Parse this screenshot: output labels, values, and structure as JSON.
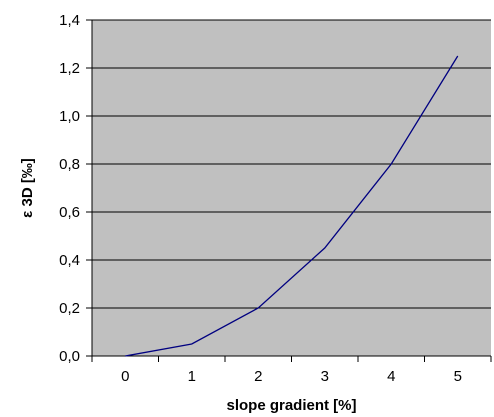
{
  "chart_data": {
    "type": "line",
    "title": "",
    "xlabel": "slope gradient [%]",
    "ylabel": "ε 3D [‰]",
    "x": [
      0,
      1,
      2,
      3,
      4,
      5
    ],
    "xticks": [
      "0",
      "1",
      "2",
      "3",
      "4",
      "5"
    ],
    "yticks": [
      "0,0",
      "0,2",
      "0,4",
      "0,6",
      "0,8",
      "1,0",
      "1,2",
      "1,4"
    ],
    "ylim": [
      0,
      1.4
    ],
    "series": [
      {
        "values": [
          0.0,
          0.05,
          0.2,
          0.45,
          0.8,
          1.25
        ]
      }
    ],
    "grid": "horizontal",
    "legend": "none",
    "colors": {
      "plot_background": "#c0c0c0",
      "line": "#000080",
      "gridline": "#000000"
    }
  }
}
